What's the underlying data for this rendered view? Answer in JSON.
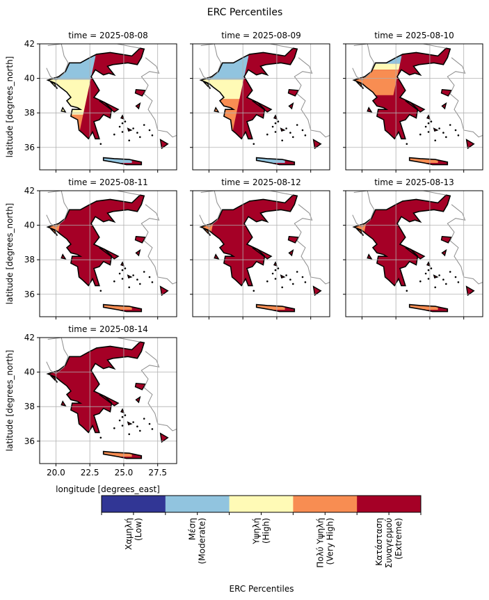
{
  "chart_data": {
    "type": "heatmap",
    "title": "ERC Percentiles",
    "xlabel": "longitude [degrees_east]",
    "ylabel": "latitude [degrees_north]",
    "xlim": [
      18.8,
      28.9
    ],
    "ylim": [
      34.7,
      42.0
    ],
    "x_ticks": [
      "20.0",
      "22.5",
      "25.0",
      "27.5"
    ],
    "y_ticks": [
      "42",
      "40",
      "38",
      "36"
    ],
    "grid": true,
    "panels": [
      {
        "title": "time = 2025-08-08",
        "fraction_by_class": [
          0.0,
          0.12,
          0.18,
          0.22,
          0.48
        ]
      },
      {
        "title": "time = 2025-08-09",
        "fraction_by_class": [
          0.0,
          0.12,
          0.1,
          0.18,
          0.6
        ]
      },
      {
        "title": "time = 2025-08-10",
        "fraction_by_class": [
          0.0,
          0.04,
          0.03,
          0.13,
          0.8
        ]
      },
      {
        "title": "time = 2025-08-11",
        "fraction_by_class": [
          0.0,
          0.03,
          0.04,
          0.16,
          0.77
        ]
      },
      {
        "title": "time = 2025-08-12",
        "fraction_by_class": [
          0.0,
          0.02,
          0.03,
          0.12,
          0.83
        ]
      },
      {
        "title": "time = 2025-08-13",
        "fraction_by_class": [
          0.0,
          0.02,
          0.04,
          0.16,
          0.78
        ]
      },
      {
        "title": "time = 2025-08-14",
        "fraction_by_class": [
          0.0,
          0.03,
          0.03,
          0.1,
          0.84
        ]
      }
    ],
    "colorbar": {
      "label": "ERC Percentiles",
      "classes": [
        {
          "label": "Χαμηλή\n(Low)",
          "color": "#313695"
        },
        {
          "label": "Μέση\n(Moderate)",
          "color": "#91c4df"
        },
        {
          "label": "Υψηλή\n(High)",
          "color": "#fffab6"
        },
        {
          "label": "Πολύ Υψηλή\n(Very High)",
          "color": "#f88d52"
        },
        {
          "label": "Κατάσταση\nΣυναγερμού\n(Extreme)",
          "color": "#a50026"
        }
      ]
    }
  }
}
